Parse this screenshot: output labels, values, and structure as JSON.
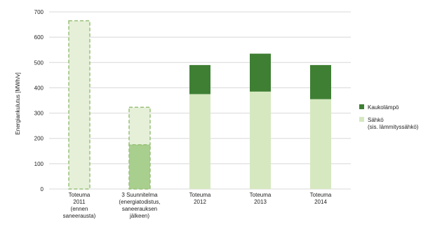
{
  "chart_data": {
    "type": "bar",
    "stacked": true,
    "ylabel": "Energiankulutus [MWh/v]",
    "ylim": [
      0,
      700
    ],
    "yticks": [
      0,
      100,
      200,
      300,
      400,
      500,
      600,
      700
    ],
    "grid": true,
    "legend_position": "right",
    "categories": [
      [
        "Toteuma",
        "2011",
        "(ennen",
        "saneerausta)"
      ],
      [
        "3 Suunnitelma",
        "(energiatodistus,",
        "saneerauksen",
        "jälkeen)"
      ],
      [
        "Toteuma",
        "2012"
      ],
      [
        "Toteuma",
        "2013"
      ],
      [
        "Toteuma",
        "2014"
      ]
    ],
    "series": [
      {
        "name": "Sähkö (sis. lämmityssähkö)",
        "legend_lines": [
          "Sähkö",
          "(sis. lämmityssähkö)"
        ],
        "color": "#d6e8c0",
        "values": [
          null,
          null,
          375,
          385,
          355
        ]
      },
      {
        "name": "Kaukolämpö",
        "legend_lines": [
          "Kaukolämpö"
        ],
        "color": "#3f7f34",
        "values": [
          null,
          null,
          115,
          150,
          135
        ]
      }
    ],
    "dashed_bars": [
      {
        "category_index": 0,
        "segments": [
          {
            "value": 665,
            "fill": "#e6f0d8",
            "stroke": "#98c07a"
          }
        ]
      },
      {
        "category_index": 1,
        "segments": [
          {
            "value": 175,
            "fill": "#a9cf8e",
            "stroke": "#98c07a"
          },
          {
            "value": 148,
            "fill": "#e6f0d8",
            "stroke": "#98c07a"
          }
        ]
      }
    ]
  }
}
